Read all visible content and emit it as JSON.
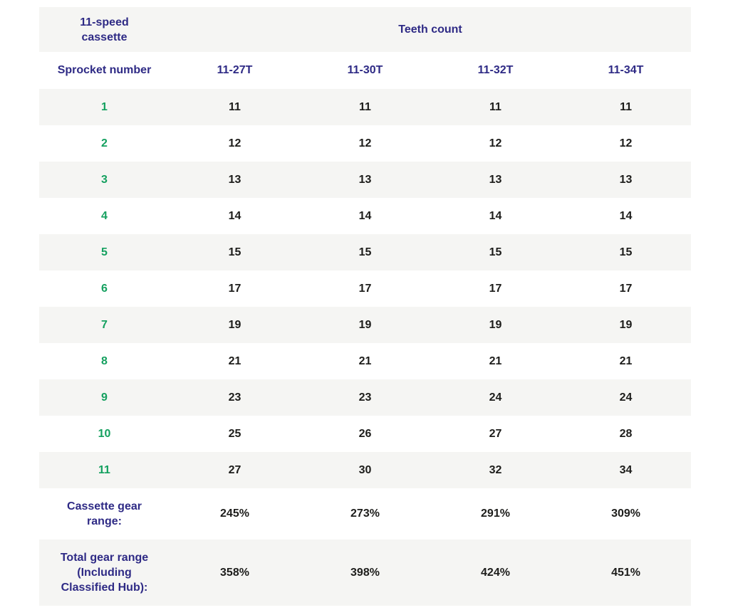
{
  "colors": {
    "header_text": "#2e2a85",
    "sprocket_number_text": "#14a05f",
    "cell_text": "#1d1d1b",
    "stripe_bg": "#f5f5f3",
    "page_bg": "#ffffff"
  },
  "table": {
    "corner_label": "11-speed\ncassette",
    "group_header": "Teeth count",
    "row_header": "Sprocket number",
    "column_headers": [
      "11-27T",
      "11-30T",
      "11-32T",
      "11-34T"
    ],
    "summary_rows": [
      {
        "label": "Cassette gear\nrange:",
        "values": [
          "245%",
          "273%",
          "291%",
          "309%"
        ]
      },
      {
        "label": "Total gear range\n(Including\nClassified Hub):",
        "values": [
          "358%",
          "398%",
          "424%",
          "451%"
        ]
      }
    ]
  },
  "chart_data": {
    "type": "table",
    "title": "Teeth count",
    "corner_label": "11-speed cassette",
    "row_header": "Sprocket number",
    "categories": [
      "11-27T",
      "11-30T",
      "11-32T",
      "11-34T"
    ],
    "sprocket_numbers": [
      1,
      2,
      3,
      4,
      5,
      6,
      7,
      8,
      9,
      10,
      11
    ],
    "series": [
      {
        "name": "11-27T",
        "values": [
          11,
          12,
          13,
          14,
          15,
          17,
          19,
          21,
          23,
          25,
          27
        ]
      },
      {
        "name": "11-30T",
        "values": [
          11,
          12,
          13,
          14,
          15,
          17,
          19,
          21,
          23,
          26,
          30
        ]
      },
      {
        "name": "11-32T",
        "values": [
          11,
          12,
          13,
          14,
          15,
          17,
          19,
          21,
          24,
          27,
          32
        ]
      },
      {
        "name": "11-34T",
        "values": [
          11,
          12,
          13,
          14,
          15,
          17,
          19,
          21,
          24,
          28,
          34
        ]
      }
    ],
    "cassette_gear_range": {
      "label": "Cassette gear range:",
      "values": [
        "245%",
        "273%",
        "291%",
        "309%"
      ]
    },
    "total_gear_range": {
      "label": "Total gear range (Including Classified Hub):",
      "values": [
        "358%",
        "398%",
        "424%",
        "451%"
      ]
    }
  }
}
